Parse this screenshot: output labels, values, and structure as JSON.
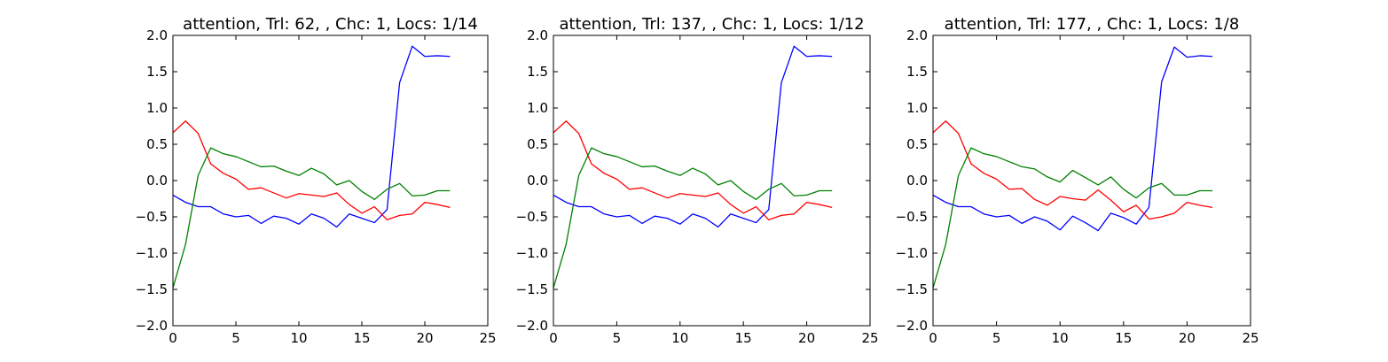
{
  "chart_data": [
    {
      "type": "line",
      "title": "attention, Trl: 62, , Chc: 1, Locs: 1/14",
      "xlabel": "",
      "ylabel": "",
      "xlim": [
        0,
        25
      ],
      "ylim": [
        -2.0,
        2.0
      ],
      "xticks": [
        "0",
        "5",
        "10",
        "15",
        "20",
        "25"
      ],
      "yticks": [
        "−2.0",
        "−1.5",
        "−1.0",
        "−0.5",
        "0.0",
        "0.5",
        "1.0",
        "1.5",
        "2.0"
      ],
      "grid": false,
      "x": [
        0,
        1,
        2,
        3,
        4,
        5,
        6,
        7,
        8,
        9,
        10,
        11,
        12,
        13,
        14,
        15,
        16,
        17,
        18,
        19,
        20,
        21,
        22
      ],
      "series": [
        {
          "color": "#0000ff",
          "values": [
            -0.2,
            -0.3,
            -0.36,
            -0.36,
            -0.46,
            -0.5,
            -0.48,
            -0.59,
            -0.49,
            -0.52,
            -0.6,
            -0.46,
            -0.52,
            -0.64,
            -0.46,
            -0.52,
            -0.58,
            -0.4,
            1.35,
            1.85,
            1.71,
            1.72,
            1.71
          ]
        },
        {
          "color": "#ff0000",
          "values": [
            0.66,
            0.82,
            0.65,
            0.23,
            0.1,
            0.02,
            -0.12,
            -0.1,
            -0.17,
            -0.24,
            -0.18,
            -0.2,
            -0.22,
            -0.17,
            -0.33,
            -0.45,
            -0.36,
            -0.54,
            -0.48,
            -0.46,
            -0.3,
            -0.33,
            -0.37
          ]
        },
        {
          "color": "#008000",
          "values": [
            -1.48,
            -0.88,
            0.07,
            0.45,
            0.37,
            0.33,
            0.26,
            0.19,
            0.2,
            0.13,
            0.07,
            0.17,
            0.09,
            -0.06,
            0.0,
            -0.15,
            -0.26,
            -0.12,
            -0.04,
            -0.21,
            -0.2,
            -0.14,
            -0.14
          ]
        }
      ]
    },
    {
      "type": "line",
      "title": "attention, Trl: 137, , Chc: 1, Locs: 1/12",
      "xlabel": "",
      "ylabel": "",
      "xlim": [
        0,
        25
      ],
      "ylim": [
        -2.0,
        2.0
      ],
      "xticks": [
        "0",
        "5",
        "10",
        "15",
        "20",
        "25"
      ],
      "yticks": [
        "−2.0",
        "−1.5",
        "−1.0",
        "−0.5",
        "0.0",
        "0.5",
        "1.0",
        "1.5",
        "2.0"
      ],
      "grid": false,
      "x": [
        0,
        1,
        2,
        3,
        4,
        5,
        6,
        7,
        8,
        9,
        10,
        11,
        12,
        13,
        14,
        15,
        16,
        17,
        18,
        19,
        20,
        21,
        22
      ],
      "series": [
        {
          "color": "#0000ff",
          "values": [
            -0.2,
            -0.3,
            -0.36,
            -0.36,
            -0.46,
            -0.5,
            -0.48,
            -0.59,
            -0.49,
            -0.52,
            -0.6,
            -0.46,
            -0.52,
            -0.64,
            -0.46,
            -0.52,
            -0.58,
            -0.4,
            1.35,
            1.85,
            1.71,
            1.72,
            1.71
          ]
        },
        {
          "color": "#ff0000",
          "values": [
            0.66,
            0.82,
            0.65,
            0.23,
            0.1,
            0.02,
            -0.12,
            -0.1,
            -0.17,
            -0.24,
            -0.18,
            -0.2,
            -0.22,
            -0.17,
            -0.33,
            -0.45,
            -0.36,
            -0.54,
            -0.48,
            -0.46,
            -0.3,
            -0.33,
            -0.37
          ]
        },
        {
          "color": "#008000",
          "values": [
            -1.48,
            -0.88,
            0.07,
            0.45,
            0.37,
            0.33,
            0.26,
            0.19,
            0.2,
            0.13,
            0.07,
            0.17,
            0.09,
            -0.06,
            0.0,
            -0.15,
            -0.26,
            -0.12,
            -0.04,
            -0.21,
            -0.2,
            -0.14,
            -0.14
          ]
        }
      ]
    },
    {
      "type": "line",
      "title": "attention, Trl: 177, , Chc: 1, Locs: 1/8",
      "xlabel": "",
      "ylabel": "",
      "xlim": [
        0,
        25
      ],
      "ylim": [
        -2.0,
        2.0
      ],
      "xticks": [
        "0",
        "5",
        "10",
        "15",
        "20",
        "25"
      ],
      "yticks": [
        "−2.0",
        "−1.5",
        "−1.0",
        "−0.5",
        "0.0",
        "0.5",
        "1.0",
        "1.5",
        "2.0"
      ],
      "grid": false,
      "x": [
        0,
        1,
        2,
        3,
        4,
        5,
        6,
        7,
        8,
        9,
        10,
        11,
        12,
        13,
        14,
        15,
        16,
        17,
        18,
        19,
        20,
        21,
        22
      ],
      "series": [
        {
          "color": "#0000ff",
          "values": [
            -0.2,
            -0.3,
            -0.36,
            -0.36,
            -0.46,
            -0.5,
            -0.48,
            -0.59,
            -0.5,
            -0.56,
            -0.68,
            -0.49,
            -0.58,
            -0.69,
            -0.45,
            -0.51,
            -0.6,
            -0.37,
            1.36,
            1.84,
            1.7,
            1.72,
            1.71
          ]
        },
        {
          "color": "#ff0000",
          "values": [
            0.66,
            0.82,
            0.65,
            0.23,
            0.1,
            0.02,
            -0.12,
            -0.11,
            -0.26,
            -0.34,
            -0.22,
            -0.25,
            -0.27,
            -0.13,
            -0.27,
            -0.43,
            -0.34,
            -0.53,
            -0.5,
            -0.45,
            -0.3,
            -0.34,
            -0.37
          ]
        },
        {
          "color": "#008000",
          "values": [
            -1.48,
            -0.88,
            0.07,
            0.45,
            0.37,
            0.33,
            0.26,
            0.19,
            0.16,
            0.05,
            -0.02,
            0.14,
            0.04,
            -0.06,
            0.05,
            -0.12,
            -0.24,
            -0.1,
            -0.04,
            -0.2,
            -0.2,
            -0.14,
            -0.14
          ]
        }
      ]
    }
  ]
}
